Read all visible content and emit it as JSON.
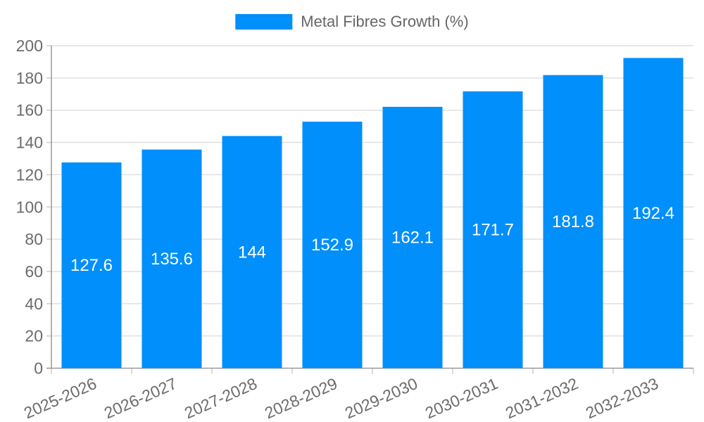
{
  "legend": {
    "label": "Metal Fibres Growth (%)"
  },
  "chart_data": {
    "type": "bar",
    "title": "",
    "xlabel": "",
    "ylabel": "",
    "categories": [
      "2025-2026",
      "2026-2027",
      "2027-2028",
      "2028-2029",
      "2029-2030",
      "2030-2031",
      "2031-2032",
      "2032-2033"
    ],
    "series": [
      {
        "name": "Metal Fibres Growth (%)",
        "values": [
          127.6,
          135.6,
          144,
          152.9,
          162.1,
          171.7,
          181.8,
          192.4
        ]
      }
    ],
    "ylim": [
      0,
      200
    ],
    "ytick_step": 20,
    "grid": true,
    "legend_position": "top-center",
    "bar_color": "#008FFB",
    "colors": {
      "bar": "#008FFB",
      "bar_value_text": "#ffffff",
      "grid": "#e0e0e0",
      "axis_line": "#999999",
      "tick_mark": "#cccccc",
      "axis_text": "#6b6b6b",
      "legend_text": "#666666",
      "background": "#ffffff"
    }
  }
}
